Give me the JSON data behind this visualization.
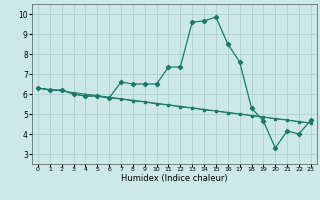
{
  "title": "",
  "xlabel": "Humidex (Indice chaleur)",
  "background_color": "#cce8e8",
  "grid_color": "#aacccc",
  "line_color": "#1a7a6a",
  "xlim": [
    -0.5,
    23.5
  ],
  "ylim": [
    2.5,
    10.5
  ],
  "xticks": [
    0,
    1,
    2,
    3,
    4,
    5,
    6,
    7,
    8,
    9,
    10,
    11,
    12,
    13,
    14,
    15,
    16,
    17,
    18,
    19,
    20,
    21,
    22,
    23
  ],
  "yticks": [
    3,
    4,
    5,
    6,
    7,
    8,
    9,
    10
  ],
  "line1_x": [
    0,
    1,
    2,
    3,
    4,
    5,
    6,
    7,
    8,
    9,
    10,
    11,
    12,
    13,
    14,
    15,
    16,
    17,
    18,
    19,
    20,
    21,
    22,
    23
  ],
  "line1_y": [
    6.3,
    6.2,
    6.2,
    6.0,
    5.9,
    5.9,
    5.8,
    6.6,
    6.5,
    6.5,
    6.5,
    7.35,
    7.35,
    9.6,
    9.65,
    9.85,
    8.5,
    7.6,
    5.3,
    4.65,
    3.3,
    4.15,
    4.0,
    4.7
  ],
  "line2_x": [
    0,
    1,
    2,
    3,
    4,
    5,
    6,
    7,
    8,
    9,
    10,
    11,
    12,
    13,
    14,
    15,
    16,
    17,
    18,
    19,
    20,
    21,
    22,
    23
  ],
  "line2_y": [
    6.3,
    6.2,
    6.2,
    6.0,
    5.9,
    5.9,
    5.8,
    5.75,
    5.65,
    5.6,
    5.5,
    5.45,
    5.35,
    5.3,
    5.2,
    5.15,
    5.05,
    5.0,
    4.9,
    4.85,
    4.75,
    4.7,
    4.6,
    4.55
  ],
  "line3_x": [
    0,
    23
  ],
  "line3_y": [
    6.3,
    4.55
  ]
}
